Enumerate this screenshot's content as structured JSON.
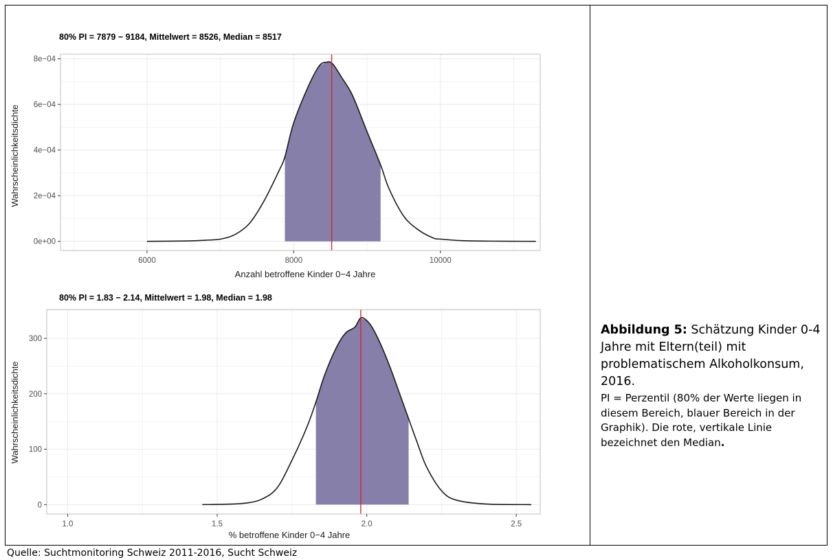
{
  "caption": {
    "label": "Abbildung 5:",
    "title": "Schätzung Kinder 0-4 Jahre mit Eltern(teil) mit problematischem Alkoholkonsum, 2016.",
    "note": "PI = Perzentil (80% der Werte liegen in diesem Bereich, blauer Bereich in der Graphik). Die rote, vertikale Linie bezeichnet den Median",
    "note_end": "."
  },
  "source": "Quelle: Suchtmonitoring Schweiz 2011-2016, Sucht Schweiz",
  "colors": {
    "fill": "#857fa9",
    "curve": "#1a1a1a",
    "median": "#d7262f",
    "grid": "#ebebeb",
    "panel_border": "#bfbfbf"
  },
  "chart_data": [
    {
      "type": "area",
      "title": "80% PI = 7879 − 9184, Mittelwert = 8526, Median = 8517",
      "xlabel": "Anzahl betroffene Kinder 0−4 Jahre",
      "ylabel": "Wahrscheinlichkeitsdichte",
      "xlim": [
        4820,
        11360
      ],
      "ylim": [
        -4e-05,
        0.00082
      ],
      "x_ticks": [
        6000,
        8000,
        10000
      ],
      "x_tick_labels": [
        "6000",
        "8000",
        "10000"
      ],
      "y_ticks": [
        0,
        0.0002,
        0.0004,
        0.0006,
        0.0008
      ],
      "y_tick_labels": [
        "0e+00",
        "2e−04",
        "4e−04",
        "6e−04",
        "8e−04"
      ],
      "grid": true,
      "pi": [
        7879,
        9184
      ],
      "median": 8517,
      "x": [
        6000,
        6500,
        6800,
        7000,
        7200,
        7400,
        7600,
        7800,
        7879,
        8000,
        8200,
        8350,
        8450,
        8500,
        8550,
        8650,
        8800,
        9000,
        9184,
        9300,
        9500,
        9700,
        9900,
        10000,
        10300,
        10700,
        11300
      ],
      "y": [
        0,
        1.5e-06,
        5e-06,
        1e-05,
        3e-05,
        8e-05,
        0.00018,
        0.00031,
        0.00037,
        0.00052,
        0.00068,
        0.00077,
        0.000785,
        0.000785,
        0.00077,
        0.00072,
        0.00064,
        0.00048,
        0.000335,
        0.00023,
        0.00011,
        5e-05,
        1.5e-05,
        1e-05,
        3e-06,
        1e-06,
        0
      ]
    },
    {
      "type": "area",
      "title": "80% PI = 1.83 − 2.14, Mittelwert = 1.98, Median = 1.98",
      "xlabel": "% betroffene Kinder 0−4 Jahre",
      "ylabel": "Wahrscheinlichkeitsdichte",
      "xlim": [
        0.93,
        2.58
      ],
      "ylim": [
        -17,
        352
      ],
      "x_ticks": [
        1.0,
        1.5,
        2.0,
        2.5
      ],
      "x_tick_labels": [
        "1.0",
        "1.5",
        "2.0",
        "2.5"
      ],
      "y_ticks": [
        0,
        100,
        200,
        300
      ],
      "y_tick_labels": [
        "0",
        "100",
        "200",
        "300"
      ],
      "grid": true,
      "pi": [
        1.83,
        2.14
      ],
      "median": 1.98,
      "x": [
        1.45,
        1.55,
        1.6,
        1.65,
        1.7,
        1.75,
        1.8,
        1.83,
        1.86,
        1.9,
        1.93,
        1.96,
        1.98,
        2.0,
        2.02,
        2.05,
        2.08,
        2.11,
        2.14,
        2.17,
        2.2,
        2.25,
        2.3,
        2.4,
        2.55
      ],
      "y": [
        0,
        1,
        3,
        10,
        30,
        80,
        140,
        185,
        235,
        285,
        310,
        320,
        337,
        332,
        318,
        285,
        245,
        200,
        155,
        110,
        68,
        25,
        8,
        1,
        0
      ]
    }
  ]
}
